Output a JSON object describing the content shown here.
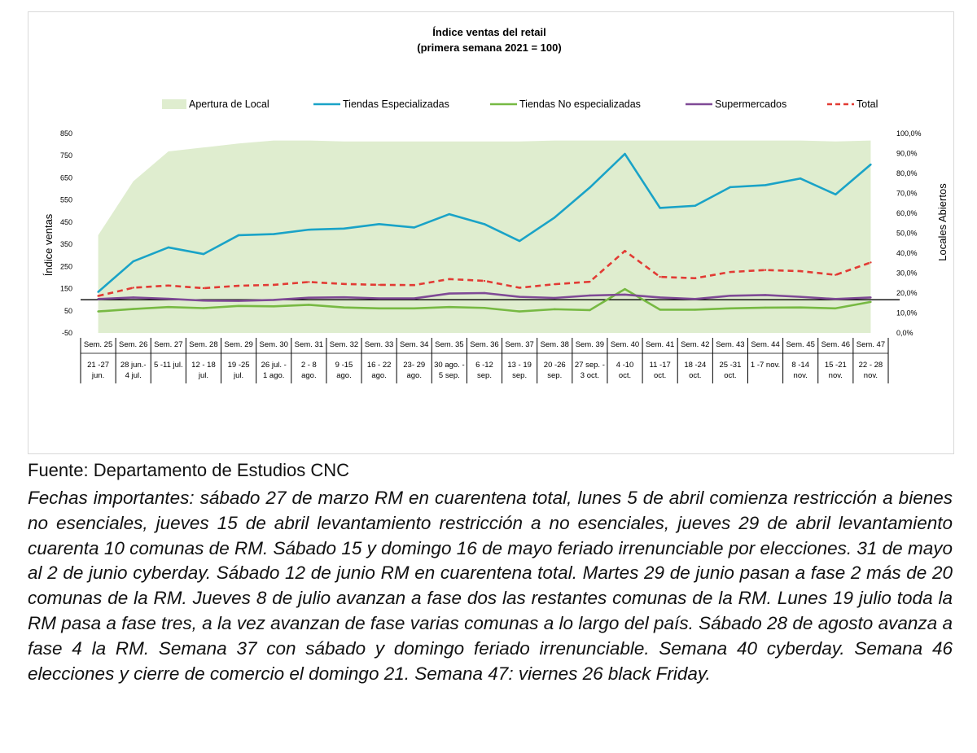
{
  "chart_data": {
    "type": "line",
    "title_line1": "Índice ventas del retail",
    "title_line2": "(primera semana 2021 = 100)",
    "ylabel": "Índice ventas",
    "y2label": "Locales Abiertos",
    "ylim": [
      -50,
      850
    ],
    "yticks": [
      "850",
      "750",
      "650",
      "550",
      "450",
      "350",
      "250",
      "150",
      "50",
      "-50"
    ],
    "y2lim": [
      0,
      100
    ],
    "y2ticks": [
      "100,0%",
      "90,0%",
      "80,0%",
      "70,0%",
      "60,0%",
      "50,0%",
      "40,0%",
      "30,0%",
      "20,0%",
      "10,0%",
      "0,0%"
    ],
    "reference_line": 100,
    "weeks": [
      "Sem. 25",
      "Sem. 26",
      "Sem. 27",
      "Sem. 28",
      "Sem. 29",
      "Sem. 30",
      "Sem. 31",
      "Sem. 32",
      "Sem. 33",
      "Sem. 34",
      "Sem. 35",
      "Sem. 36",
      "Sem. 37",
      "Sem. 38",
      "Sem. 39",
      "Sem. 40",
      "Sem. 41",
      "Sem. 42",
      "Sem. 43",
      "Sem. 44",
      "Sem. 45",
      "Sem. 46",
      "Sem. 47"
    ],
    "dates": [
      [
        "21 -27",
        "jun."
      ],
      [
        "28 jun.-",
        "4 jul."
      ],
      [
        "5 -11 jul."
      ],
      [
        "12 - 18",
        "jul."
      ],
      [
        "19 -25",
        "jul."
      ],
      [
        "26 jul. -",
        "1 ago."
      ],
      [
        "2 - 8",
        "ago."
      ],
      [
        "9 -15",
        "ago."
      ],
      [
        "16 - 22",
        "ago."
      ],
      [
        "23- 29",
        "ago."
      ],
      [
        "30 ago. -",
        "5 sep."
      ],
      [
        "6 -12",
        "sep."
      ],
      [
        "13 - 19",
        "sep."
      ],
      [
        "20 -26",
        "sep."
      ],
      [
        "27 sep. -",
        "3 oct."
      ],
      [
        "4 -10",
        "oct."
      ],
      [
        "11 -17",
        "oct."
      ],
      [
        "18 -24",
        "oct."
      ],
      [
        "25 -31",
        "oct."
      ],
      [
        "1 -7 nov."
      ],
      [
        "8 -14",
        "nov."
      ],
      [
        "15 -21",
        "nov."
      ],
      [
        "22 - 28",
        "nov."
      ]
    ],
    "area": {
      "name": "Apertura de Local",
      "color": "#dfedcf",
      "values": [
        49,
        76,
        91,
        93,
        95,
        96.5,
        96.5,
        96,
        96,
        96,
        96,
        96,
        96,
        96.5,
        96.5,
        96.5,
        96.5,
        96.5,
        96.5,
        96.5,
        96.5,
        96,
        96.5
      ]
    },
    "series": [
      {
        "name": "Tiendas Especializadas",
        "color": "#1aa3c7",
        "dash": false,
        "values": [
          135,
          273,
          336,
          306,
          391,
          396,
          416,
          421,
          441,
          426,
          486,
          441,
          365,
          471,
          606,
          758,
          514,
          524,
          608,
          617,
          647,
          575,
          710
        ]
      },
      {
        "name": "Tiendas No especializadas",
        "color": "#77b943",
        "dash": false,
        "values": [
          47,
          58,
          67,
          62,
          72,
          70,
          77,
          65,
          61,
          61,
          67,
          63,
          47,
          57,
          53,
          148,
          55,
          55,
          61,
          64,
          65,
          61,
          90
        ]
      },
      {
        "name": "Supermercados",
        "color": "#7f4a96",
        "dash": false,
        "values": [
          103,
          110,
          104,
          96,
          95,
          99,
          109,
          111,
          106,
          106,
          128,
          130,
          113,
          108,
          119,
          123,
          110,
          103,
          118,
          121,
          113,
          103,
          110
        ]
      },
      {
        "name": "Total",
        "color": "#e23b34",
        "dash": true,
        "values": [
          117,
          154,
          164,
          152,
          163,
          167,
          180,
          171,
          167,
          166,
          193,
          185,
          154,
          170,
          181,
          320,
          203,
          197,
          225,
          234,
          229,
          212,
          268
        ]
      }
    ]
  },
  "source": "Fuente: Departamento de Estudios CNC",
  "notes": "Fechas importantes: sábado 27 de marzo RM en cuarentena total, lunes 5 de abril comienza restricción a bienes no esenciales, jueves 15 de abril levantamiento restricción a no esenciales, jueves 29 de abril levantamiento cuarenta 10 comunas de RM. Sábado 15 y domingo 16 de mayo feriado irrenunciable por elecciones. 31 de mayo al 2 de junio cyberday. Sábado 12 de junio RM en cuarentena total. Martes 29 de junio pasan a fase 2 más de 20 comunas de la RM. Jueves 8 de julio avanzan a fase dos las restantes comunas de la RM. Lunes 19 julio toda la RM pasa a fase tres, a la vez avanzan de fase varias comunas a lo largo del país. Sábado 28 de agosto avanza a fase 4 la RM. Semana 37 con sábado y domingo feriado irrenunciable. Semana 40 cyberday. Semana 46 elecciones y cierre de comercio el domingo 21. Semana 47: viernes 26 black Friday."
}
